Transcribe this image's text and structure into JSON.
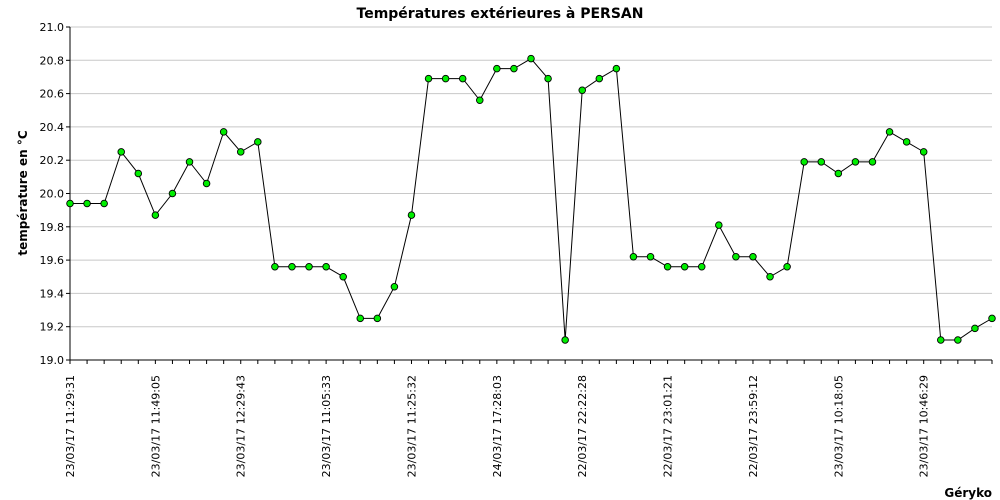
{
  "chart_data": {
    "type": "line",
    "title": "Températures extérieures à PERSAN",
    "xlabel": "",
    "ylabel": "température en °C",
    "ylim": [
      19.0,
      21.0
    ],
    "yticks": [
      "19.0",
      "19.2",
      "19.4",
      "19.6",
      "19.8",
      "20.0",
      "20.2",
      "20.4",
      "20.6",
      "20.8",
      "21.0"
    ],
    "grid": true,
    "x_tick_labels": [
      "23/03/17  11:29:31",
      "23/03/17  11:49:05",
      "23/03/17  12:29:43",
      "23/03/17  11:05:33",
      "23/03/17  11:25:32",
      "24/03/17  17:28:03",
      "22/03/17  22:22:28",
      "22/03/17  23:01:21",
      "22/03/17  23:59:12",
      "23/03/17  10:18:05",
      "23/03/17  10:46:29"
    ],
    "series": [
      {
        "values": [
          19.94,
          19.94,
          19.94,
          20.25,
          20.12,
          19.87,
          20.0,
          20.19,
          20.06,
          20.37,
          20.25,
          20.31,
          19.56,
          19.56,
          19.56,
          19.56,
          19.5,
          19.25,
          19.25,
          19.44,
          19.87,
          20.69,
          20.69,
          20.69,
          20.56,
          20.75,
          20.75,
          20.81,
          20.69,
          19.12,
          20.62,
          20.69,
          20.75,
          19.62,
          19.62,
          19.56,
          19.56,
          19.56,
          19.81,
          19.62,
          19.62,
          19.5,
          19.56,
          20.19,
          20.19,
          20.12,
          20.19,
          20.19,
          20.37,
          20.31,
          20.25,
          19.12,
          19.12,
          19.19,
          19.25
        ]
      }
    ],
    "colors": {
      "line": "#000000",
      "marker": "#00ee00",
      "grid": "#c8c8c8"
    }
  },
  "credit": "Géryko"
}
